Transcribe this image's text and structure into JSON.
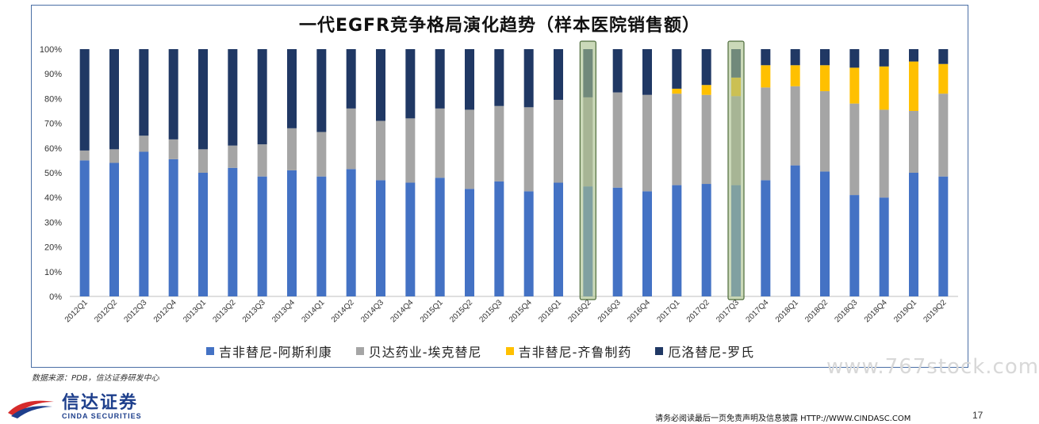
{
  "header": {
    "title": "一代EGFR竞争格局演化趋势（样本医院销售额）"
  },
  "footer": {
    "source": "数据来源：PDB，信达证券研发中心",
    "watermark": "www.767stock.com",
    "logo_cn": "信达证券",
    "logo_en": "CINDA SECURITIES",
    "disclaimer": "请务必阅读最后一页免责声明及信息披露   HTTP://WWW.CINDASC.COM",
    "page_number": "17"
  },
  "colors": {
    "gefitinib": "#4472c4",
    "icotinib": "#a5a5a5",
    "gefitinib_qilu": "#ffc000",
    "erlotinib": "#203864",
    "highlight": "#a9c08a",
    "frame": "#4a6fa5"
  },
  "chart_data": {
    "type": "bar",
    "stacked": true,
    "title": "一代EGFR竞争格局演化趋势（样本医院销售额）",
    "categories": [
      "2012Q1",
      "2012Q2",
      "2012Q3",
      "2012Q4",
      "2013Q1",
      "2013Q2",
      "2013Q3",
      "2013Q4",
      "2014Q1",
      "2014Q2",
      "2014Q3",
      "2014Q4",
      "2015Q1",
      "2015Q2",
      "2015Q3",
      "2015Q4",
      "2016Q1",
      "2016Q2",
      "2016Q3",
      "2016Q4",
      "2017Q1",
      "2017Q2",
      "2017Q3",
      "2017Q4",
      "2018Q1",
      "2018Q2",
      "2018Q3",
      "2018Q4",
      "2019Q1",
      "2019Q2"
    ],
    "yticks": [
      "0%",
      "10%",
      "20%",
      "30%",
      "40%",
      "50%",
      "60%",
      "70%",
      "80%",
      "90%",
      "100%"
    ],
    "ylim": [
      0,
      100
    ],
    "highlighted": [
      "2016Q2",
      "2017Q3"
    ],
    "legend_position": "bottom",
    "series": [
      {
        "name": "吉非替尼-阿斯利康",
        "color": "#4472c4",
        "values": [
          55,
          54,
          58.5,
          55.5,
          50,
          52,
          48.5,
          51,
          48.5,
          51.5,
          47,
          46,
          48,
          43.5,
          46.5,
          42.5,
          46,
          44.5,
          44,
          42.5,
          45,
          45.5,
          45,
          47,
          53,
          50.5,
          41,
          40,
          50,
          48.5
        ]
      },
      {
        "name": "贝达药业-埃克替尼",
        "color": "#a5a5a5",
        "values": [
          4,
          5.5,
          6.5,
          8,
          9.5,
          9,
          13,
          17,
          18,
          24.5,
          24,
          26,
          28,
          32,
          30.5,
          34,
          33.5,
          36,
          38.5,
          39,
          37,
          36,
          36,
          37.5,
          32,
          32.5,
          37,
          35.5,
          25,
          33.5
        ]
      },
      {
        "name": "吉非替尼-齐鲁制药",
        "color": "#ffc000",
        "values": [
          0,
          0,
          0,
          0,
          0,
          0,
          0,
          0,
          0,
          0,
          0,
          0,
          0,
          0,
          0,
          0,
          0,
          0,
          0,
          0,
          2,
          4,
          7.5,
          9,
          8.5,
          10.5,
          14.5,
          17.5,
          20,
          12
        ]
      },
      {
        "name": "厄洛替尼-罗氏",
        "color": "#203864",
        "values": [
          41,
          40.5,
          35,
          36.5,
          40.5,
          39,
          38.5,
          32,
          33.5,
          24,
          29,
          28,
          24,
          24.5,
          23,
          23.5,
          20.5,
          19.5,
          17.5,
          18.5,
          16,
          14.5,
          11.5,
          6.5,
          6.5,
          6.5,
          7.5,
          7,
          5,
          6
        ]
      }
    ]
  }
}
